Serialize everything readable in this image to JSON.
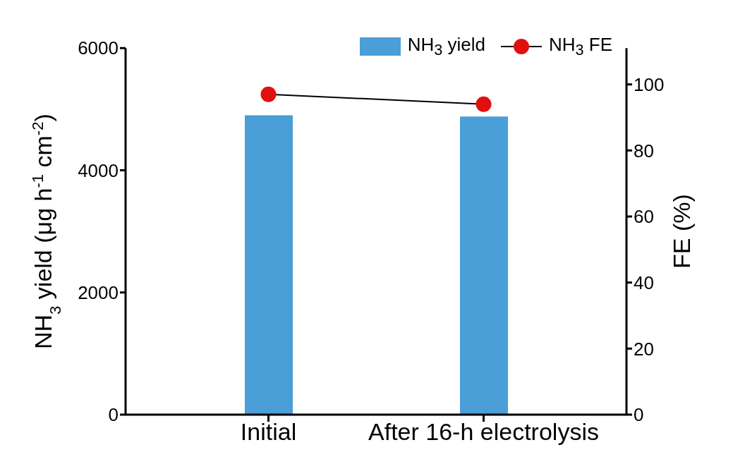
{
  "chart_data": {
    "type": "bar",
    "categories": [
      "Initial",
      "After 16-h electrolysis"
    ],
    "ylabel": "NH$_{3}$ yield (μg h$^{-1}$ cm$^{-2}$)",
    "y2label": "FE (%)",
    "series": [
      {
        "name": "NH$_{3}$ yield",
        "color": "#4a9fd8",
        "values": [
          4900,
          4880
        ]
      },
      {
        "name": "NH$_{3}$ FE",
        "type": "line",
        "axis": "y2",
        "color": "#e01010",
        "values": [
          97,
          94
        ]
      }
    ],
    "ylim": [
      0,
      6000
    ],
    "yticks": [
      0,
      2000,
      4000,
      6000
    ],
    "y2lim": [
      0,
      111
    ],
    "y2ticks": [
      0,
      20,
      40,
      60,
      80,
      100
    ],
    "marker": "circle",
    "line_style": "solid",
    "legend": "top right",
    "grid": false
  }
}
